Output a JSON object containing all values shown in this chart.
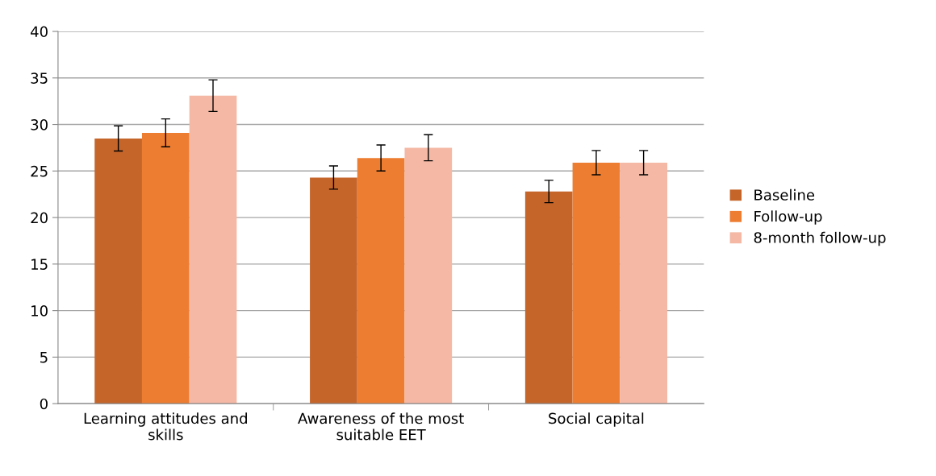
{
  "chart_data": {
    "type": "bar",
    "categories": [
      "Learning attitudes and skills",
      "Awareness of the most suitable EET",
      "Social capital"
    ],
    "series": [
      {
        "name": "Baseline",
        "color": "#c5652a",
        "values": [
          28.5,
          24.3,
          22.8
        ],
        "errors": [
          1.35,
          1.25,
          1.2
        ]
      },
      {
        "name": "Follow-up",
        "color": "#ed7d31",
        "values": [
          29.1,
          26.4,
          25.9
        ],
        "errors": [
          1.5,
          1.4,
          1.3
        ]
      },
      {
        "name": "8-month follow-up",
        "color": "#f4b8a4",
        "values": [
          33.1,
          27.5,
          25.9
        ],
        "errors": [
          1.7,
          1.4,
          1.3
        ]
      }
    ],
    "ylim": [
      0,
      40
    ],
    "yticks": [
      0,
      5,
      10,
      15,
      20,
      25,
      30,
      35,
      40
    ],
    "grid": "y",
    "legend": "right"
  }
}
